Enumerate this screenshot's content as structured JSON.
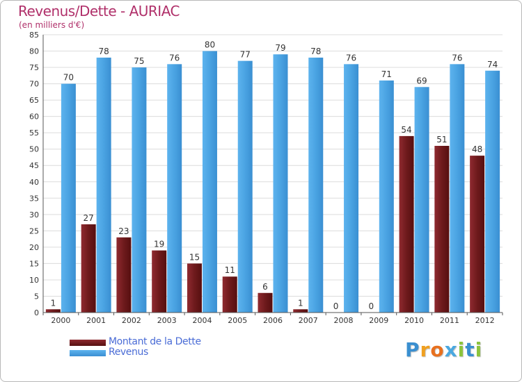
{
  "chart_data": {
    "type": "bar",
    "title": "Revenus/Dette - AURIAC",
    "subtitle": "(en milliers d'€)",
    "categories": [
      "2000",
      "2001",
      "2002",
      "2003",
      "2004",
      "2005",
      "2006",
      "2007",
      "2008",
      "2009",
      "2010",
      "2011",
      "2012"
    ],
    "series": [
      {
        "name": "Montant de la Dette",
        "color": "#7a1e22",
        "values": [
          1,
          27,
          23,
          19,
          15,
          11,
          6,
          1,
          0,
          0,
          54,
          51,
          48
        ]
      },
      {
        "name": "Revenus",
        "color": "#4fa6e4",
        "values": [
          70,
          78,
          75,
          76,
          80,
          77,
          79,
          78,
          76,
          71,
          69,
          76,
          74
        ]
      }
    ],
    "yticks": [
      0,
      5,
      10,
      15,
      20,
      25,
      30,
      35,
      40,
      45,
      50,
      55,
      60,
      65,
      70,
      75,
      80,
      85
    ],
    "ylim": [
      0,
      85
    ],
    "grid": true,
    "legend_position": "bottom-left"
  },
  "logo": {
    "letters": [
      "P",
      "r",
      "o",
      "x",
      "i",
      "t",
      "i"
    ],
    "colors": [
      "#3a8fd0",
      "#f0a020",
      "#e8701e",
      "#4aa8e0",
      "#8cc43c",
      "#3a8fd0",
      "#8cc43c"
    ]
  }
}
